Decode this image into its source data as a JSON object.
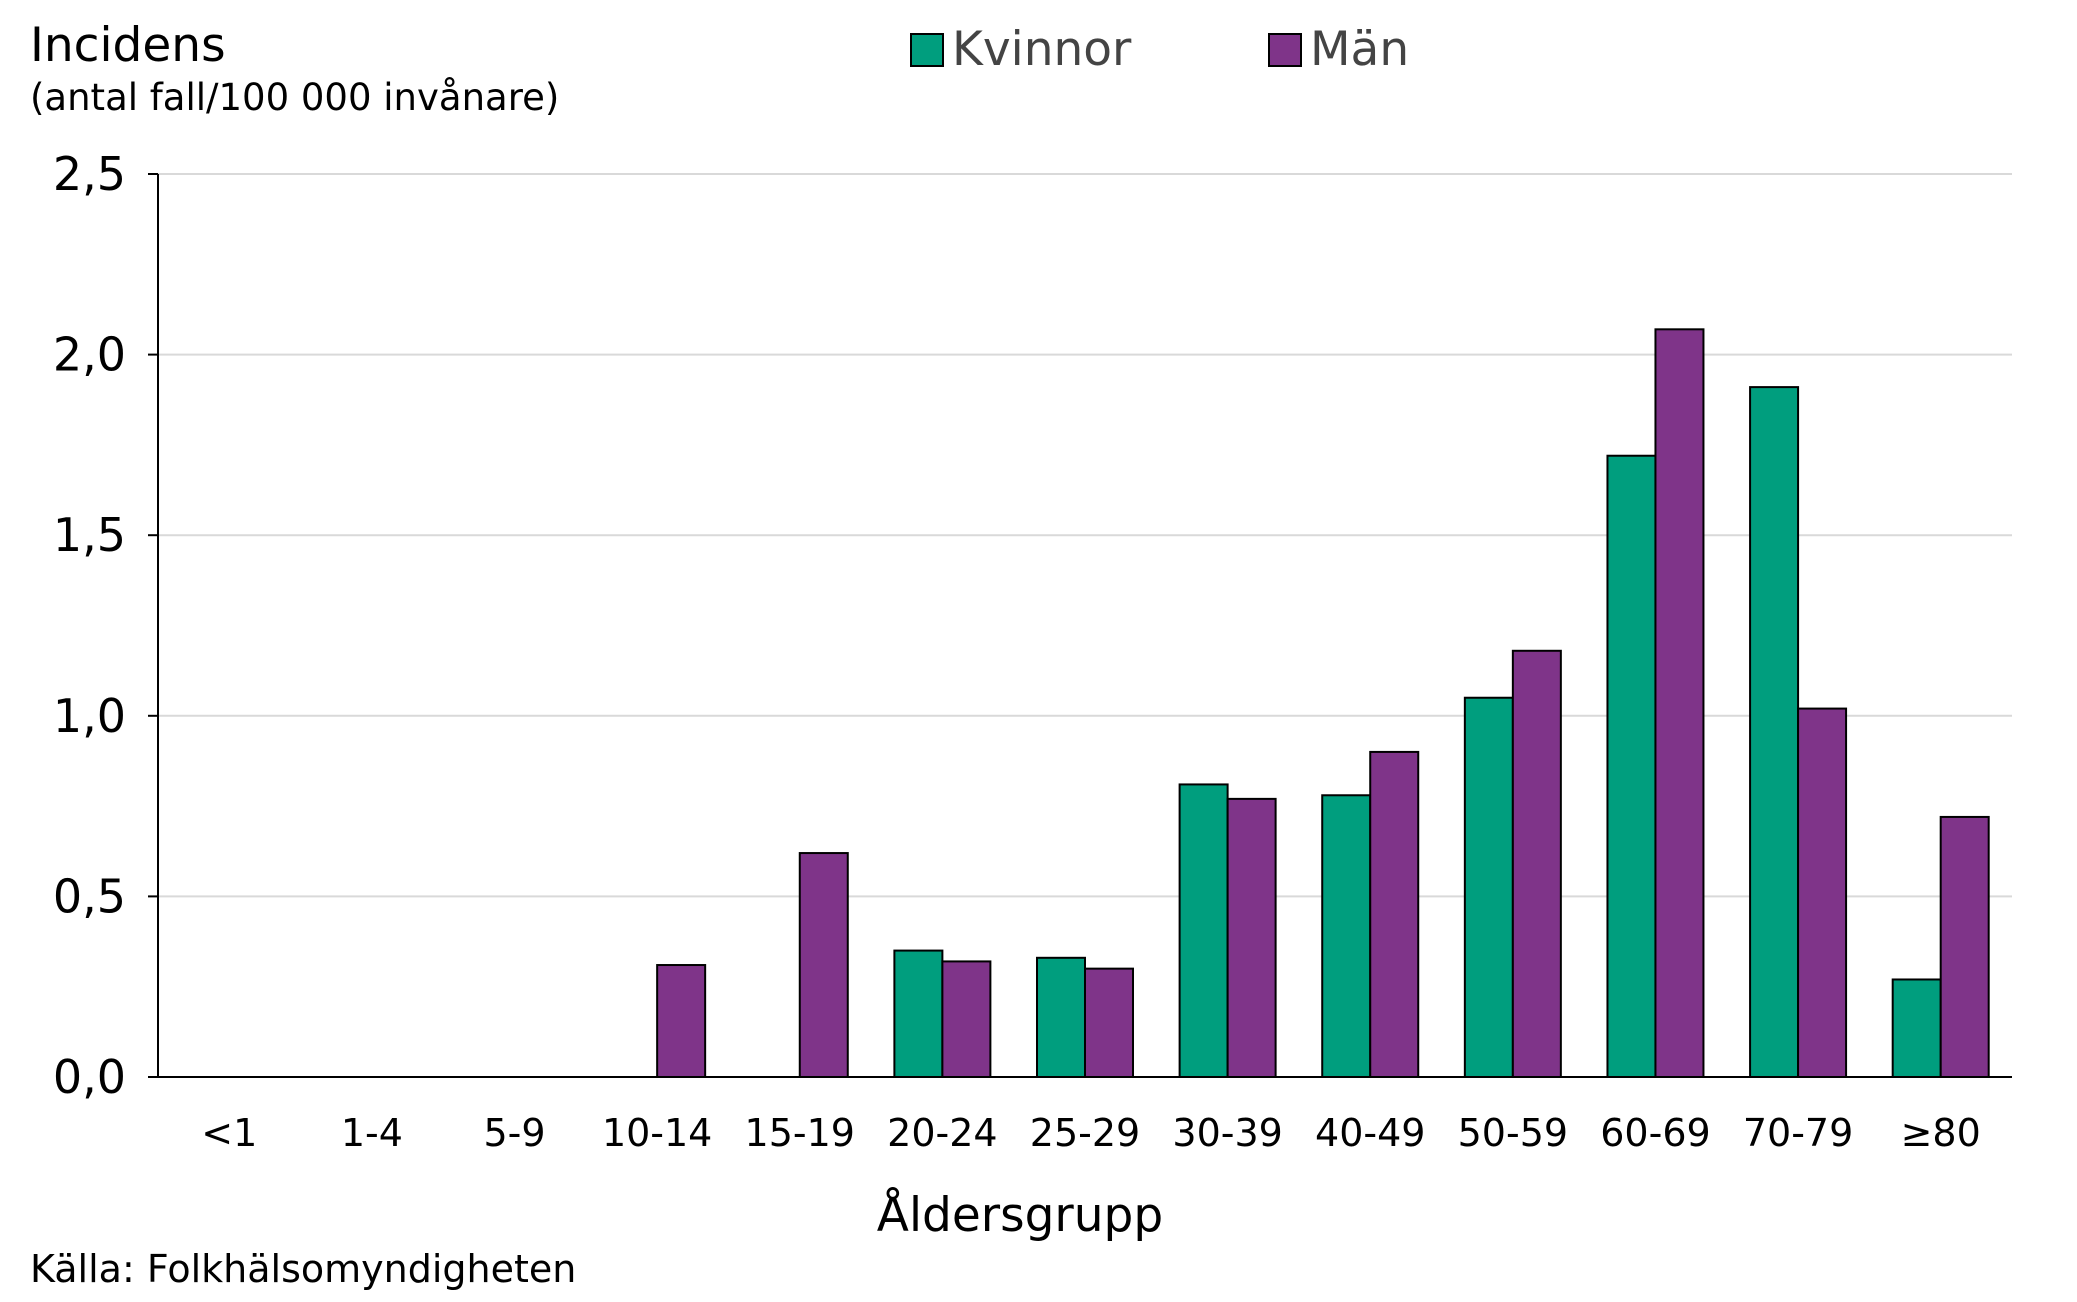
{
  "chart_data": {
    "type": "bar",
    "ylabel_line1": "Incidens",
    "ylabel_line2": "(antal fall/100 000 invånare)",
    "xlabel": "Åldersgrupp",
    "source": "Källa: Folkhälsomyndigheten",
    "categories": [
      "<1",
      "1-4",
      "5-9",
      "10-14",
      "15-19",
      "20-24",
      "25-29",
      "30-39",
      "40-49",
      "50-59",
      "60-69",
      "70-79",
      "≥80"
    ],
    "series": [
      {
        "name": "Kvinnor",
        "color": "#009e7e",
        "values": [
          0,
          0,
          0,
          0,
          0,
          0.35,
          0.33,
          0.81,
          0.78,
          1.05,
          1.72,
          1.91,
          0.27
        ]
      },
      {
        "name": "Män",
        "color": "#7f3489",
        "values": [
          0,
          0,
          0,
          0.31,
          0.62,
          0.32,
          0.3,
          0.77,
          0.9,
          1.18,
          2.07,
          1.02,
          0.72
        ]
      }
    ],
    "ylim": [
      0,
      2.5
    ],
    "yticks": [
      "0,0",
      "0,5",
      "1,0",
      "1,5",
      "2,0",
      "2,5"
    ],
    "grid": true,
    "legend_position": "top-center"
  }
}
